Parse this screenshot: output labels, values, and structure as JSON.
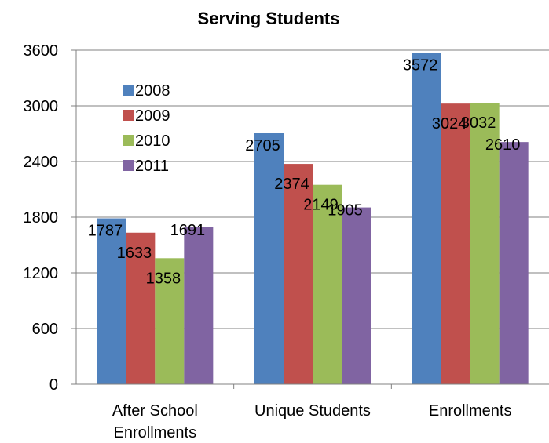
{
  "chart_data": {
    "type": "bar",
    "title": "Serving Students",
    "categories": [
      [
        "After School",
        "Enrollments"
      ],
      [
        "Unique Students"
      ],
      [
        "Enrollments"
      ]
    ],
    "series": [
      {
        "name": "2008",
        "color": "#4F81BD",
        "values": [
          1787,
          2705,
          3572
        ]
      },
      {
        "name": "2009",
        "color": "#C0504D",
        "values": [
          1633,
          2374,
          3024
        ]
      },
      {
        "name": "2010",
        "color": "#9BBB59",
        "values": [
          1358,
          2149,
          3032
        ]
      },
      {
        "name": "2011",
        "color": "#8064A2",
        "values": [
          1691,
          1905,
          2610
        ]
      }
    ],
    "ylim": [
      0,
      3600
    ],
    "yticks": [
      0,
      600,
      1200,
      1800,
      2400,
      3000,
      3600
    ],
    "grid": true,
    "legend": "top-left inside plot"
  }
}
